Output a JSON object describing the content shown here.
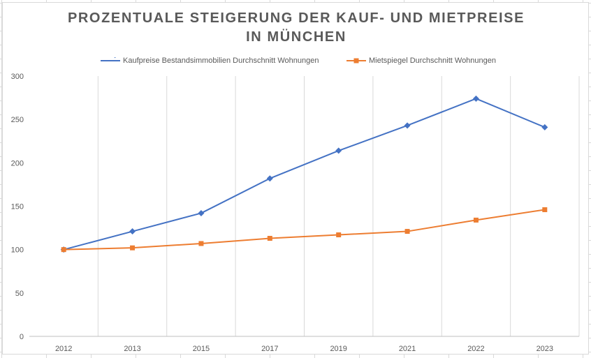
{
  "chart_data": {
    "type": "line",
    "title": "PROZENTUALE STEIGERUNG DER KAUF- UND MIETPREISE IN MÜNCHEN",
    "categories": [
      "2012",
      "2013",
      "2015",
      "2017",
      "2019",
      "2021",
      "2022",
      "2023"
    ],
    "ylim": [
      0,
      300
    ],
    "yticks": [
      0,
      50,
      100,
      150,
      200,
      250,
      300
    ],
    "grid": "vertical",
    "legend_position": "top",
    "series": [
      {
        "name": "Kaufpreise Bestandsimmobilien Durchschnitt Wohnungen",
        "values": [
          100,
          121,
          142,
          182,
          214,
          243,
          274,
          241
        ],
        "color": "#4472c4",
        "marker": "diamond"
      },
      {
        "name": "Mietspiegel Durchschnitt Wohnungen",
        "values": [
          100,
          102,
          107,
          113,
          117,
          121,
          134,
          146
        ],
        "color": "#ed7d31",
        "marker": "square"
      }
    ]
  }
}
